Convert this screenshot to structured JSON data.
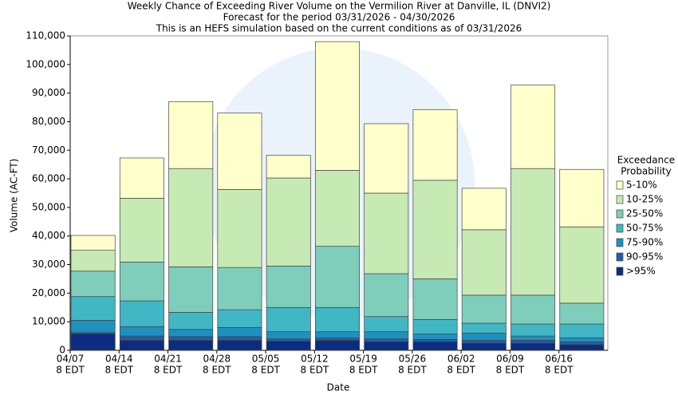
{
  "chart_data": {
    "type": "stacked_bar",
    "title": [
      "Weekly Chance of Exceeding River Volume on the Vermilion River at Danville, IL (DNVI2)",
      "Forecast for the period 03/31/2026 - 04/30/2026",
      "This is an HEFS simulation based on the current conditions as of 03/31/2026"
    ],
    "x_label": "Date",
    "y_label": "Volume (AC-FT)",
    "legend_title": [
      "Exceedance",
      "Probability"
    ],
    "categories": [
      [
        "04/07",
        "8 EDT"
      ],
      [
        "04/14",
        "8 EDT"
      ],
      [
        "04/21",
        "8 EDT"
      ],
      [
        "04/28",
        "8 EDT"
      ],
      [
        "05/05",
        "8 EDT"
      ],
      [
        "05/12",
        "8 EDT"
      ],
      [
        "05/19",
        "8 EDT"
      ],
      [
        "05/26",
        "8 EDT"
      ],
      [
        "06/02",
        "8 EDT"
      ],
      [
        "06/09",
        "8 EDT"
      ],
      [
        "06/16",
        "8 EDT"
      ]
    ],
    "series": [
      {
        "name": ">95%",
        "color": "#0c2c84",
        "values": [
          5800,
          3500,
          3500,
          3500,
          3200,
          3500,
          3000,
          3000,
          2500,
          2500,
          2000
        ]
      },
      {
        "name": "90-95%",
        "color": "#225ea8",
        "values": [
          400,
          1500,
          1300,
          1300,
          800,
          800,
          1000,
          800,
          1000,
          1000,
          1000
        ]
      },
      {
        "name": "75-90%",
        "color": "#1d91c0",
        "values": [
          4300,
          3300,
          2500,
          3200,
          2500,
          2200,
          2500,
          1900,
          2500,
          1500,
          1400
        ]
      },
      {
        "name": "50-75%",
        "color": "#41b6c4",
        "values": [
          8300,
          9000,
          6000,
          6200,
          8500,
          8500,
          5300,
          5100,
          3500,
          4200,
          4800
        ]
      },
      {
        "name": "25-50%",
        "color": "#7fcdbb",
        "values": [
          8900,
          13600,
          15900,
          14800,
          14500,
          21400,
          15000,
          14200,
          9800,
          10100,
          7300
        ]
      },
      {
        "name": "10-25%",
        "color": "#c7e9b4",
        "values": [
          7300,
          22300,
          34400,
          27300,
          30800,
          26600,
          28200,
          34500,
          22900,
          44300,
          26700
        ]
      },
      {
        "name": "5-10%",
        "color": "#ffffcc",
        "values": [
          5200,
          14100,
          23400,
          26700,
          7900,
          45000,
          24300,
          24700,
          14500,
          29200,
          20100
        ]
      }
    ],
    "ylim": [
      0,
      110000
    ],
    "yticks": [
      0,
      {
        "value": 10000,
        "label": "10,000"
      },
      {
        "value": 20000,
        "label": "20,000"
      },
      {
        "value": 30000,
        "label": "30,000"
      },
      {
        "value": 40000,
        "label": "40,000"
      },
      {
        "value": 50000,
        "label": "50,000"
      },
      {
        "value": 60000,
        "label": "60,000"
      },
      {
        "value": 70000,
        "label": "70,000"
      },
      {
        "value": 80000,
        "label": "80,000"
      },
      {
        "value": 90000,
        "label": "90,000"
      },
      {
        "value": 100000,
        "label": "100,000"
      },
      {
        "value": 110000,
        "label": "110,000"
      }
    ],
    "grid": false
  }
}
